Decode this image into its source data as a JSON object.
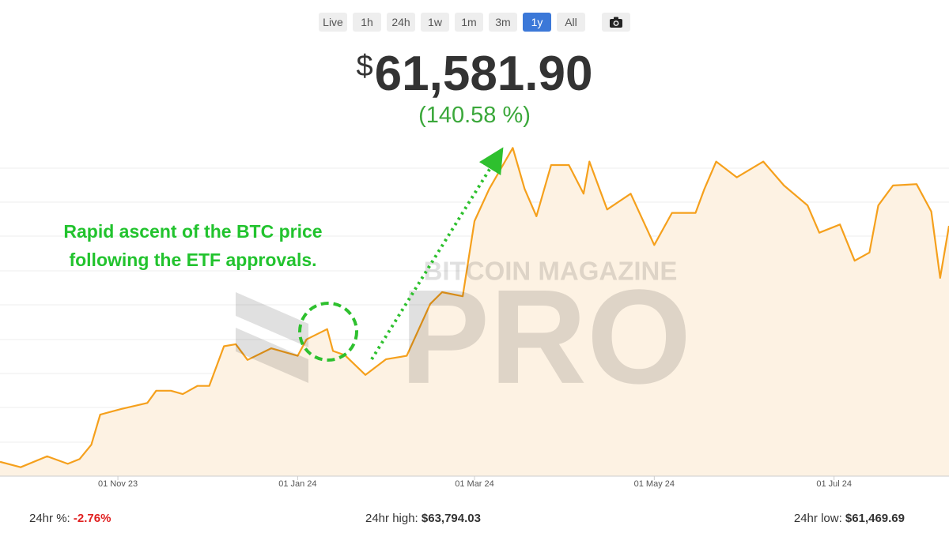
{
  "controls": {
    "ranges": [
      "Live",
      "1h",
      "24h",
      "1w",
      "1m",
      "3m",
      "1y",
      "All"
    ],
    "active": 6
  },
  "header": {
    "currency": "$",
    "price": "61,581.90",
    "change": "(140.58 %)"
  },
  "chart_data": {
    "type": "line",
    "color": "#f5a01c",
    "area": true,
    "area_color": "#fdf2e3",
    "x": [
      "2023-09-22",
      "2023-09-29",
      "2023-10-08",
      "2023-10-15",
      "2023-10-19",
      "2023-10-23",
      "2023-10-26",
      "2023-11-02",
      "2023-11-11",
      "2023-11-14",
      "2023-11-19",
      "2023-11-23",
      "2023-11-28",
      "2023-12-02",
      "2023-12-07",
      "2023-12-11",
      "2023-12-15",
      "2023-12-23",
      "2024-01-01",
      "2024-01-04",
      "2024-01-11",
      "2024-01-13",
      "2024-01-17",
      "2024-01-24",
      "2024-01-31",
      "2024-02-07",
      "2024-02-15",
      "2024-02-19",
      "2024-02-26",
      "2024-03-01",
      "2024-03-06",
      "2024-03-14",
      "2024-03-18",
      "2024-03-22",
      "2024-03-27",
      "2024-04-02",
      "2024-04-07",
      "2024-04-09",
      "2024-04-15",
      "2024-04-23",
      "2024-05-01",
      "2024-05-07",
      "2024-05-15",
      "2024-05-18",
      "2024-05-22",
      "2024-05-29",
      "2024-06-07",
      "2024-06-14",
      "2024-06-22",
      "2024-06-26",
      "2024-07-03",
      "2024-07-08",
      "2024-07-13",
      "2024-07-16",
      "2024-07-21",
      "2024-07-29",
      "2024-08-03",
      "2024-08-06",
      "2024-08-09"
    ],
    "values": [
      27100,
      26300,
      27900,
      26800,
      27500,
      29600,
      34000,
      34800,
      35700,
      37500,
      37500,
      37000,
      38200,
      38200,
      44000,
      44300,
      42000,
      43700,
      42600,
      45000,
      46500,
      43300,
      42700,
      39800,
      42100,
      42600,
      50200,
      51900,
      51300,
      62300,
      67000,
      73000,
      67000,
      63000,
      70500,
      70500,
      66300,
      71000,
      64000,
      66300,
      58800,
      63500,
      63500,
      67000,
      71000,
      68700,
      71000,
      67500,
      64600,
      60600,
      61800,
      56500,
      57700,
      64600,
      67500,
      67700,
      63700,
      54000,
      61600
    ],
    "xlim": [
      "2023-09-22",
      "2024-08-09"
    ],
    "xticks": [
      {
        "value": "2023-11-01",
        "label": "01 Nov 23"
      },
      {
        "value": "2024-01-01",
        "label": "01 Jan 24"
      },
      {
        "value": "2024-03-01",
        "label": "01 Mar 24"
      },
      {
        "value": "2024-05-01",
        "label": "01 May 24"
      },
      {
        "value": "2024-07-01",
        "label": "01 Jul 24"
      }
    ],
    "ylim": [
      25000,
      75000
    ],
    "annotation": [
      "Rapid ascent of the BTC price",
      "following the ETF approvals."
    ],
    "watermark": [
      "BITCOIN MAGAZINE",
      "PRO"
    ]
  },
  "footer": {
    "change_label": "24hr %:",
    "change": "-2.76%",
    "high_label": "24hr high:",
    "high": "$63,794.03",
    "low_label": "24hr low:",
    "low": "$61,469.69"
  }
}
